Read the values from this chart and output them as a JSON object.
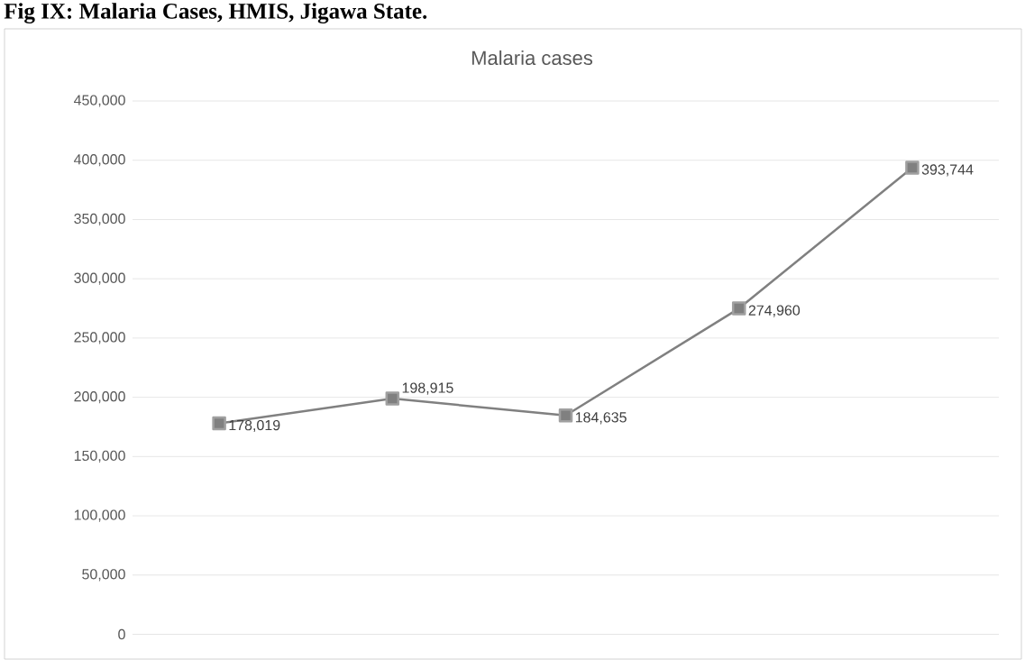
{
  "chart_data": {
    "type": "line",
    "title": "Fig IX: Malaria Cases, HMIS, Jigawa State.",
    "subtitle": "Malaria cases",
    "categories": [
      null,
      null,
      null,
      null,
      null
    ],
    "values": [
      178019,
      198915,
      184635,
      274960,
      393744
    ],
    "value_labels": [
      "178,019",
      "198,915",
      "184,635",
      "274,960",
      "393,744"
    ],
    "color": "#808080",
    "marker": "square",
    "line_style": "solid",
    "ylim": [
      0,
      450000
    ],
    "yticks": [
      {
        "value": 0,
        "label": "0"
      },
      {
        "value": 50000,
        "label": "50,000"
      },
      {
        "value": 100000,
        "label": "100,000"
      },
      {
        "value": 150000,
        "label": "150,000"
      },
      {
        "value": 200000,
        "label": "200,000"
      },
      {
        "value": 250000,
        "label": "250,000"
      },
      {
        "value": 300000,
        "label": "300,000"
      },
      {
        "value": 350000,
        "label": "350,000"
      },
      {
        "value": 400000,
        "label": "400,000"
      },
      {
        "value": 450000,
        "label": "450,000"
      }
    ],
    "grid": "y",
    "tick_labels": "y"
  }
}
